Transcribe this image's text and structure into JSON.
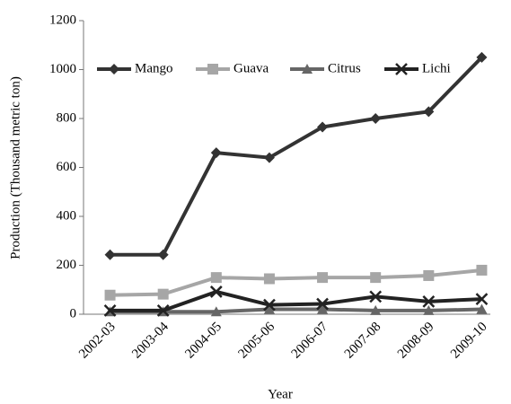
{
  "chart_data": {
    "type": "line",
    "x_label": "Year",
    "y_label": "Production (Thousand metric ton)",
    "categories": [
      "2002-03",
      "2003-04",
      "2004-05",
      "2005-06",
      "2006-07",
      "2007-08",
      "2008-09",
      "2009-10"
    ],
    "series": [
      {
        "name": "Mango",
        "color": "#333333",
        "marker": "diamond",
        "values": [
          243,
          243,
          660,
          640,
          765,
          800,
          828,
          1050
        ]
      },
      {
        "name": "Guava",
        "color": "#a6a6a6",
        "marker": "square",
        "values": [
          78,
          82,
          150,
          145,
          150,
          150,
          158,
          180
        ]
      },
      {
        "name": "Citrus",
        "color": "#666666",
        "marker": "triangle",
        "values": [
          10,
          10,
          10,
          20,
          20,
          15,
          15,
          20
        ]
      },
      {
        "name": "Lichi",
        "color": "#222222",
        "marker": "x",
        "values": [
          15,
          15,
          92,
          38,
          42,
          72,
          52,
          62
        ]
      }
    ],
    "ylim": [
      0,
      1200
    ],
    "yticks": [
      0,
      200,
      400,
      600,
      800,
      1000,
      1200
    ],
    "legend": "top",
    "grid": false
  }
}
